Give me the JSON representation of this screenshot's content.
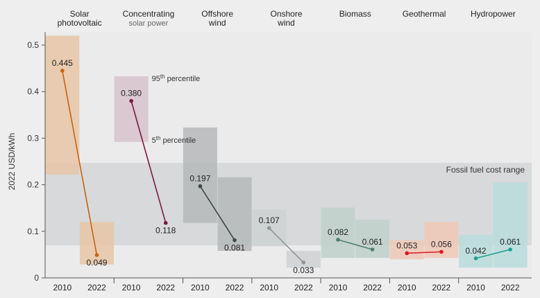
{
  "chart_data": {
    "type": "range-bar-slope",
    "ylabel": "2022 USD/kWh",
    "ylim": [
      0,
      0.5
    ],
    "yticks": [
      "0",
      "0.1",
      "0.2",
      "0.3",
      "0.4",
      "0.5"
    ],
    "ytick_values": [
      0,
      0.1,
      0.2,
      0.3,
      0.4,
      0.5
    ],
    "fossil_band": {
      "label": "Fossil fuel cost range",
      "low": 0.07,
      "high": 0.247,
      "color": "#d7d9da"
    },
    "annotations": {
      "p95": {
        "prefix": "95",
        "sup": "th",
        "suffix": " percentile"
      },
      "p5": {
        "prefix": "5",
        "sup": "th",
        "suffix": " percentile"
      }
    },
    "series": [
      {
        "title": [
          "Solar",
          "photovoltaic"
        ],
        "subtitle": "",
        "color": "#c8620f",
        "box_color": "#e7c5a6",
        "years": [
          "2010",
          "2022"
        ],
        "values": [
          0.445,
          0.049
        ],
        "labels": [
          "0.445",
          "0.049"
        ],
        "ranges": [
          [
            0.222,
            0.52
          ],
          [
            0.029,
            0.12
          ]
        ]
      },
      {
        "title": [
          "Concentrating"
        ],
        "subtitle": "solar power",
        "color": "#7a1840",
        "box_color": "#d7c3cd",
        "years": [
          "2010",
          "2022"
        ],
        "values": [
          0.38,
          0.118
        ],
        "labels": [
          "0.380",
          "0.118"
        ],
        "ranges": [
          [
            0.292,
            0.433
          ],
          [
            0.118,
            0.118
          ]
        ]
      },
      {
        "title": [
          "Offshore",
          "wind"
        ],
        "subtitle": "",
        "color": "#3e4547",
        "box_color": "#b6b9ba",
        "years": [
          "2010",
          "2022"
        ],
        "values": [
          0.197,
          0.081
        ],
        "labels": [
          "0.197",
          "0.081"
        ],
        "ranges": [
          [
            0.118,
            0.323
          ],
          [
            0.058,
            0.216
          ]
        ]
      },
      {
        "title": [
          "Onshore",
          "wind"
        ],
        "subtitle": "",
        "color": "#8f9596",
        "box_color": "#cfd1d2",
        "years": [
          "2010",
          "2022"
        ],
        "values": [
          0.107,
          0.033
        ],
        "labels": [
          "0.107",
          "0.033"
        ],
        "ranges": [
          [
            0.068,
            0.147
          ],
          [
            0.022,
            0.058
          ]
        ]
      },
      {
        "title": [
          "Biomass"
        ],
        "subtitle": "",
        "color": "#4f7f70",
        "box_color": "#bfd0ca",
        "years": [
          "2010",
          "2022"
        ],
        "values": [
          0.082,
          0.061
        ],
        "labels": [
          "0.082",
          "0.061"
        ],
        "ranges": [
          [
            0.043,
            0.151
          ],
          [
            0.043,
            0.125
          ]
        ]
      },
      {
        "title": [
          "Geothermal"
        ],
        "subtitle": "",
        "color": "#e0141e",
        "box_color": "#f0c8b6",
        "years": [
          "2010",
          "2022"
        ],
        "values": [
          0.053,
          0.056
        ],
        "labels": [
          "0.053",
          "0.056"
        ],
        "ranges": [
          [
            0.04,
            0.081
          ],
          [
            0.043,
            0.12
          ]
        ]
      },
      {
        "title": [
          "Hydropower"
        ],
        "subtitle": "",
        "color": "#1f9e96",
        "box_color": "#b9dcda",
        "years": [
          "2010",
          "2022"
        ],
        "values": [
          0.042,
          0.061
        ],
        "labels": [
          "0.042",
          "0.061"
        ],
        "ranges": [
          [
            0.022,
            0.092
          ],
          [
            0.022,
            0.205
          ]
        ]
      }
    ]
  }
}
